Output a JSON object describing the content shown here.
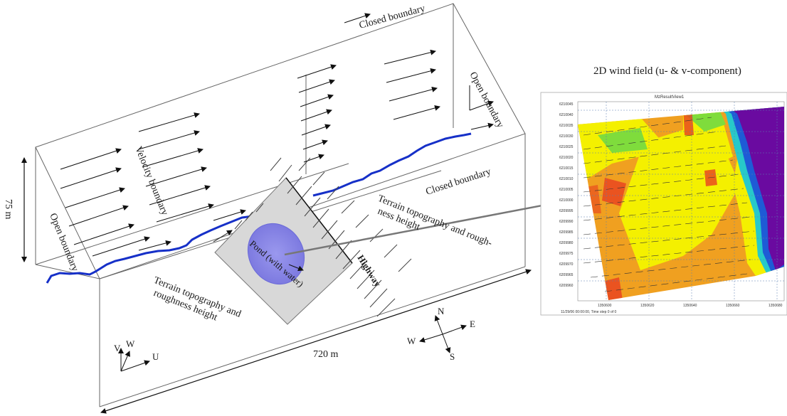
{
  "diagram": {
    "labels": {
      "closed_boundary_top": "Closed boundary",
      "closed_boundary_right": "Closed boundary",
      "open_boundary_right": "Open boundary",
      "open_boundary_left": "Open boundary",
      "velocity_boundary": "Velocity boundary",
      "terrain_right_l1": "Terrain topography and rough-",
      "terrain_right_l2": "ness height",
      "terrain_left_l1": "Terrain topography and",
      "terrain_left_l2": "roughness height",
      "pond": "Pond (with water)",
      "highway": "Highway",
      "height_dim": "75 m",
      "length_dim": "720 m"
    },
    "axes": {
      "v": "V",
      "w": "W",
      "u": "U"
    },
    "compass": {
      "n": "N",
      "s": "S",
      "e": "E",
      "w": "W"
    }
  },
  "inset": {
    "title": "2D wind field (u- & v-component)",
    "plot_title": "MzResultView1",
    "y_ticks": [
      "6210045",
      "6210040",
      "6210035",
      "6210030",
      "6210025",
      "6210020",
      "6210015",
      "6210010",
      "6210005",
      "6210000",
      "6209995",
      "6209990",
      "6209985",
      "6209980",
      "6209975",
      "6209970",
      "6209965",
      "6209960"
    ],
    "x_ticks": [
      "1350600",
      "1350620",
      "1350640",
      "1350660",
      "1350680"
    ],
    "footer": "11/29/06 00:00:00, Time step 0 of 0",
    "colors": {
      "purple": "#6a0aa0",
      "blue": "#1e5bd6",
      "cyan": "#27c9c9",
      "green": "#7fdc3c",
      "yellow": "#f4f000",
      "orange": "#f0a020",
      "red": "#e84020"
    }
  }
}
